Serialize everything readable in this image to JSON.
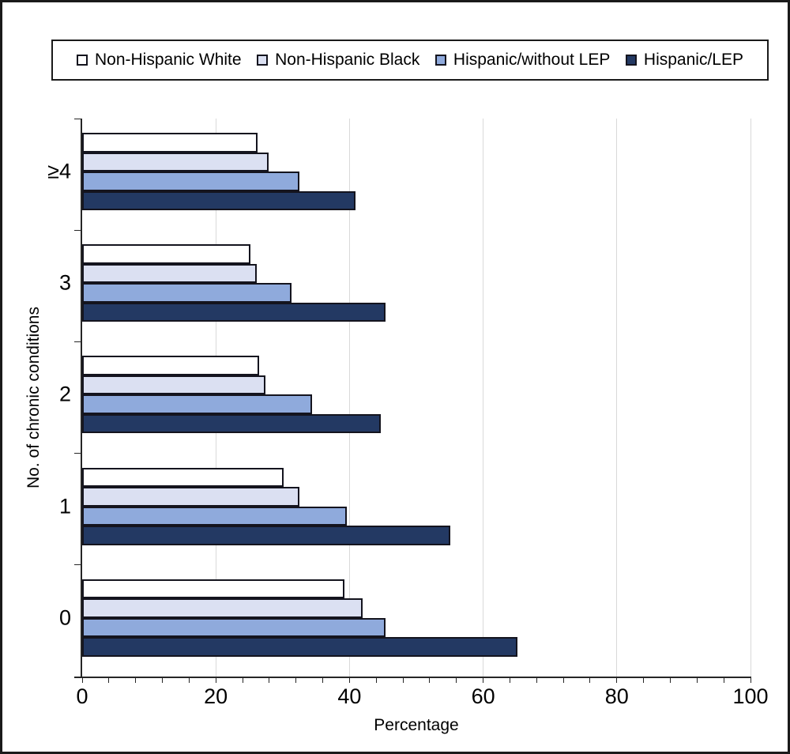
{
  "figure": {
    "x_axis_label": "Percentage",
    "y_axis_label": "No. of chronic conditions"
  },
  "colors": {
    "background": "#ffffff",
    "frame_border": "#1a1a1a",
    "bar_border": "#14141e",
    "axis_line": "#262626",
    "gridline": "#d9d9d9",
    "text": "#000000"
  },
  "chart_data": {
    "type": "bar",
    "orientation": "horizontal",
    "title": "",
    "xlabel": "Percentage",
    "ylabel": "No. of chronic conditions",
    "xlim": [
      0,
      100
    ],
    "xticks": [
      0,
      20,
      40,
      60,
      80,
      100
    ],
    "minor_tick_step": 4,
    "grid": "vertical-major",
    "legend_position": "top",
    "categories": [
      "≥4",
      "3",
      "2",
      "1",
      "0"
    ],
    "series": [
      {
        "name": "Non-Hispanic White",
        "color": "#ffffff",
        "values": [
          26.3,
          25.2,
          26.5,
          30.1,
          39.2
        ]
      },
      {
        "name": "Non-Hispanic Black",
        "color": "#dbe0f2",
        "values": [
          27.9,
          26.1,
          27.4,
          32.5,
          42.0
        ]
      },
      {
        "name": "Hispanic/without LEP",
        "color": "#8faadc",
        "values": [
          32.5,
          31.3,
          34.4,
          39.6,
          45.4
        ]
      },
      {
        "name": "Hispanic/LEP",
        "color": "#233963",
        "values": [
          40.9,
          45.4,
          44.7,
          55.1,
          65.1
        ]
      }
    ]
  }
}
